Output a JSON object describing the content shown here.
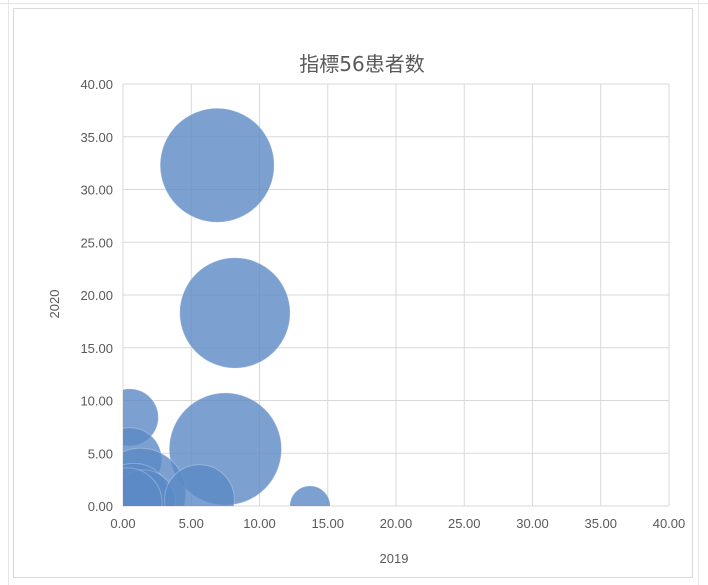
{
  "chart_data": {
    "type": "bubble",
    "title": "指標56患者数",
    "xlabel": "2019",
    "ylabel": "2020",
    "xlim": [
      0,
      40
    ],
    "ylim": [
      0,
      40
    ],
    "xticks": [
      "0.00",
      "5.00",
      "10.00",
      "15.00",
      "20.00",
      "25.00",
      "30.00",
      "35.00",
      "40.00"
    ],
    "yticks": [
      "0.00",
      "5.00",
      "10.00",
      "15.00",
      "20.00",
      "25.00",
      "30.00",
      "35.00",
      "40.00"
    ],
    "grid": true,
    "bubble_color": "#5b8ac6",
    "points": [
      {
        "x": 6.9,
        "y": 32.3,
        "size": 32
      },
      {
        "x": 8.2,
        "y": 18.3,
        "size": 30
      },
      {
        "x": 7.5,
        "y": 5.4,
        "size": 31
      },
      {
        "x": 0.5,
        "y": 8.4,
        "size": 8
      },
      {
        "x": 0.5,
        "y": 4.4,
        "size": 10
      },
      {
        "x": 1.3,
        "y": 1.2,
        "size": 20
      },
      {
        "x": 0.8,
        "y": 0.6,
        "size": 13
      },
      {
        "x": 1.5,
        "y": 0.4,
        "size": 10
      },
      {
        "x": 0.3,
        "y": 0.3,
        "size": 12
      },
      {
        "x": 5.6,
        "y": 0.6,
        "size": 12
      },
      {
        "x": 13.7,
        "y": 0.0,
        "size": 4
      }
    ]
  }
}
